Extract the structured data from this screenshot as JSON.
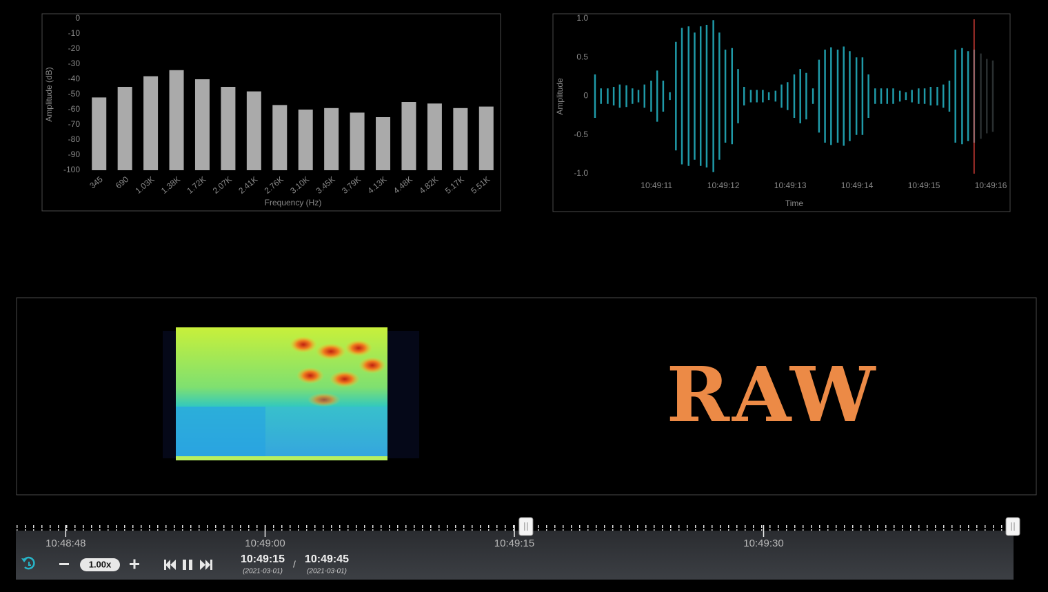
{
  "chart_data": [
    {
      "type": "bar",
      "y_label": "Amplitude (dB)",
      "x_label": "Frequency (Hz)",
      "categories": [
        "345",
        "690",
        "1.03K",
        "1.38K",
        "1.72K",
        "2.07K",
        "2.41K",
        "2.76K",
        "3.10K",
        "3.45K",
        "3.79K",
        "4.13K",
        "4.48K",
        "4.82K",
        "5.17K",
        "5.51K"
      ],
      "values": [
        -52,
        -45,
        -38,
        -34,
        -40,
        -45,
        -48,
        -57,
        -60,
        -59,
        -62,
        -65,
        -55,
        -56,
        -59,
        -58
      ],
      "color": "#aaaaaa",
      "ylim": [
        -100,
        0
      ],
      "yticks": [
        0,
        -10,
        -20,
        -30,
        -40,
        -50,
        -60,
        -70,
        -80,
        -90,
        -100
      ]
    },
    {
      "type": "waveform",
      "y_label": "Amplitude",
      "x_label": "Time",
      "x": [
        10.08,
        10.17,
        10.27,
        10.36,
        10.45,
        10.55,
        10.64,
        10.73,
        10.82,
        10.92,
        11.01,
        11.1,
        11.2,
        11.29,
        11.38,
        11.48,
        11.57,
        11.66,
        11.75,
        11.85,
        11.94,
        12.03,
        12.13,
        12.22,
        12.31,
        12.41,
        12.5,
        12.59,
        12.68,
        12.78,
        12.87,
        12.96,
        13.06,
        13.15,
        13.24,
        13.34,
        13.43,
        13.52,
        13.61,
        13.71,
        13.8,
        13.89,
        13.99,
        14.08,
        14.17,
        14.27,
        14.36,
        14.45,
        14.54,
        14.64,
        14.73,
        14.82,
        14.92,
        15.01,
        15.1,
        15.2,
        15.29,
        15.38,
        15.47,
        15.57,
        15.66,
        15.75,
        15.85,
        15.94,
        16.03
      ],
      "values": [
        0.28,
        0.1,
        0.1,
        0.12,
        0.15,
        0.14,
        0.1,
        0.08,
        0.15,
        0.2,
        0.33,
        0.2,
        0.05,
        0.7,
        0.88,
        0.9,
        0.82,
        0.9,
        0.92,
        0.98,
        0.82,
        0.6,
        0.62,
        0.35,
        0.12,
        0.08,
        0.08,
        0.08,
        0.05,
        0.07,
        0.15,
        0.18,
        0.28,
        0.35,
        0.3,
        0.1,
        0.47,
        0.6,
        0.63,
        0.6,
        0.64,
        0.58,
        0.5,
        0.5,
        0.28,
        0.1,
        0.1,
        0.1,
        0.1,
        0.07,
        0.05,
        0.08,
        0.1,
        0.1,
        0.12,
        0.12,
        0.15,
        0.2,
        0.6,
        0.62,
        0.58,
        0.6,
        0.55,
        0.48,
        0.46
      ],
      "color": "#1f9aa8",
      "unplayed_color": "#2a2f30",
      "cursor": 15.75,
      "cursor_color": "#e0403a",
      "xlim": [
        10.07,
        16.03
      ],
      "xticks": [
        {
          "value": 11,
          "label": "10:49:11"
        },
        {
          "value": 12,
          "label": "10:49:12"
        },
        {
          "value": 13,
          "label": "10:49:13"
        },
        {
          "value": 14,
          "label": "10:49:14"
        },
        {
          "value": 15,
          "label": "10:49:15"
        },
        {
          "value": 16,
          "label": "10:49:16"
        }
      ],
      "ylim": [
        -1,
        1
      ],
      "yticks": [
        {
          "value": 1,
          "label": "1.0"
        },
        0.5,
        0,
        -0.5,
        {
          "value": -1,
          "label": "-1.0"
        }
      ]
    }
  ],
  "stream_label": "RAW",
  "player": {
    "speed": "1.00x",
    "current_time": "10:49:15",
    "current_date": "(2021-03-01)",
    "separator": "/",
    "end_time": "10:49:45",
    "end_date": "(2021-03-01)",
    "timeline": {
      "xlim": [
        45,
        105
      ],
      "xticks": [
        {
          "value": 48,
          "label": "10:48:48"
        },
        {
          "value": 60,
          "label": "10:49:00"
        },
        {
          "value": 75,
          "label": "10:49:15"
        },
        {
          "value": 90,
          "label": "10:49:30"
        }
      ],
      "position": 75.7,
      "end": 105
    }
  }
}
